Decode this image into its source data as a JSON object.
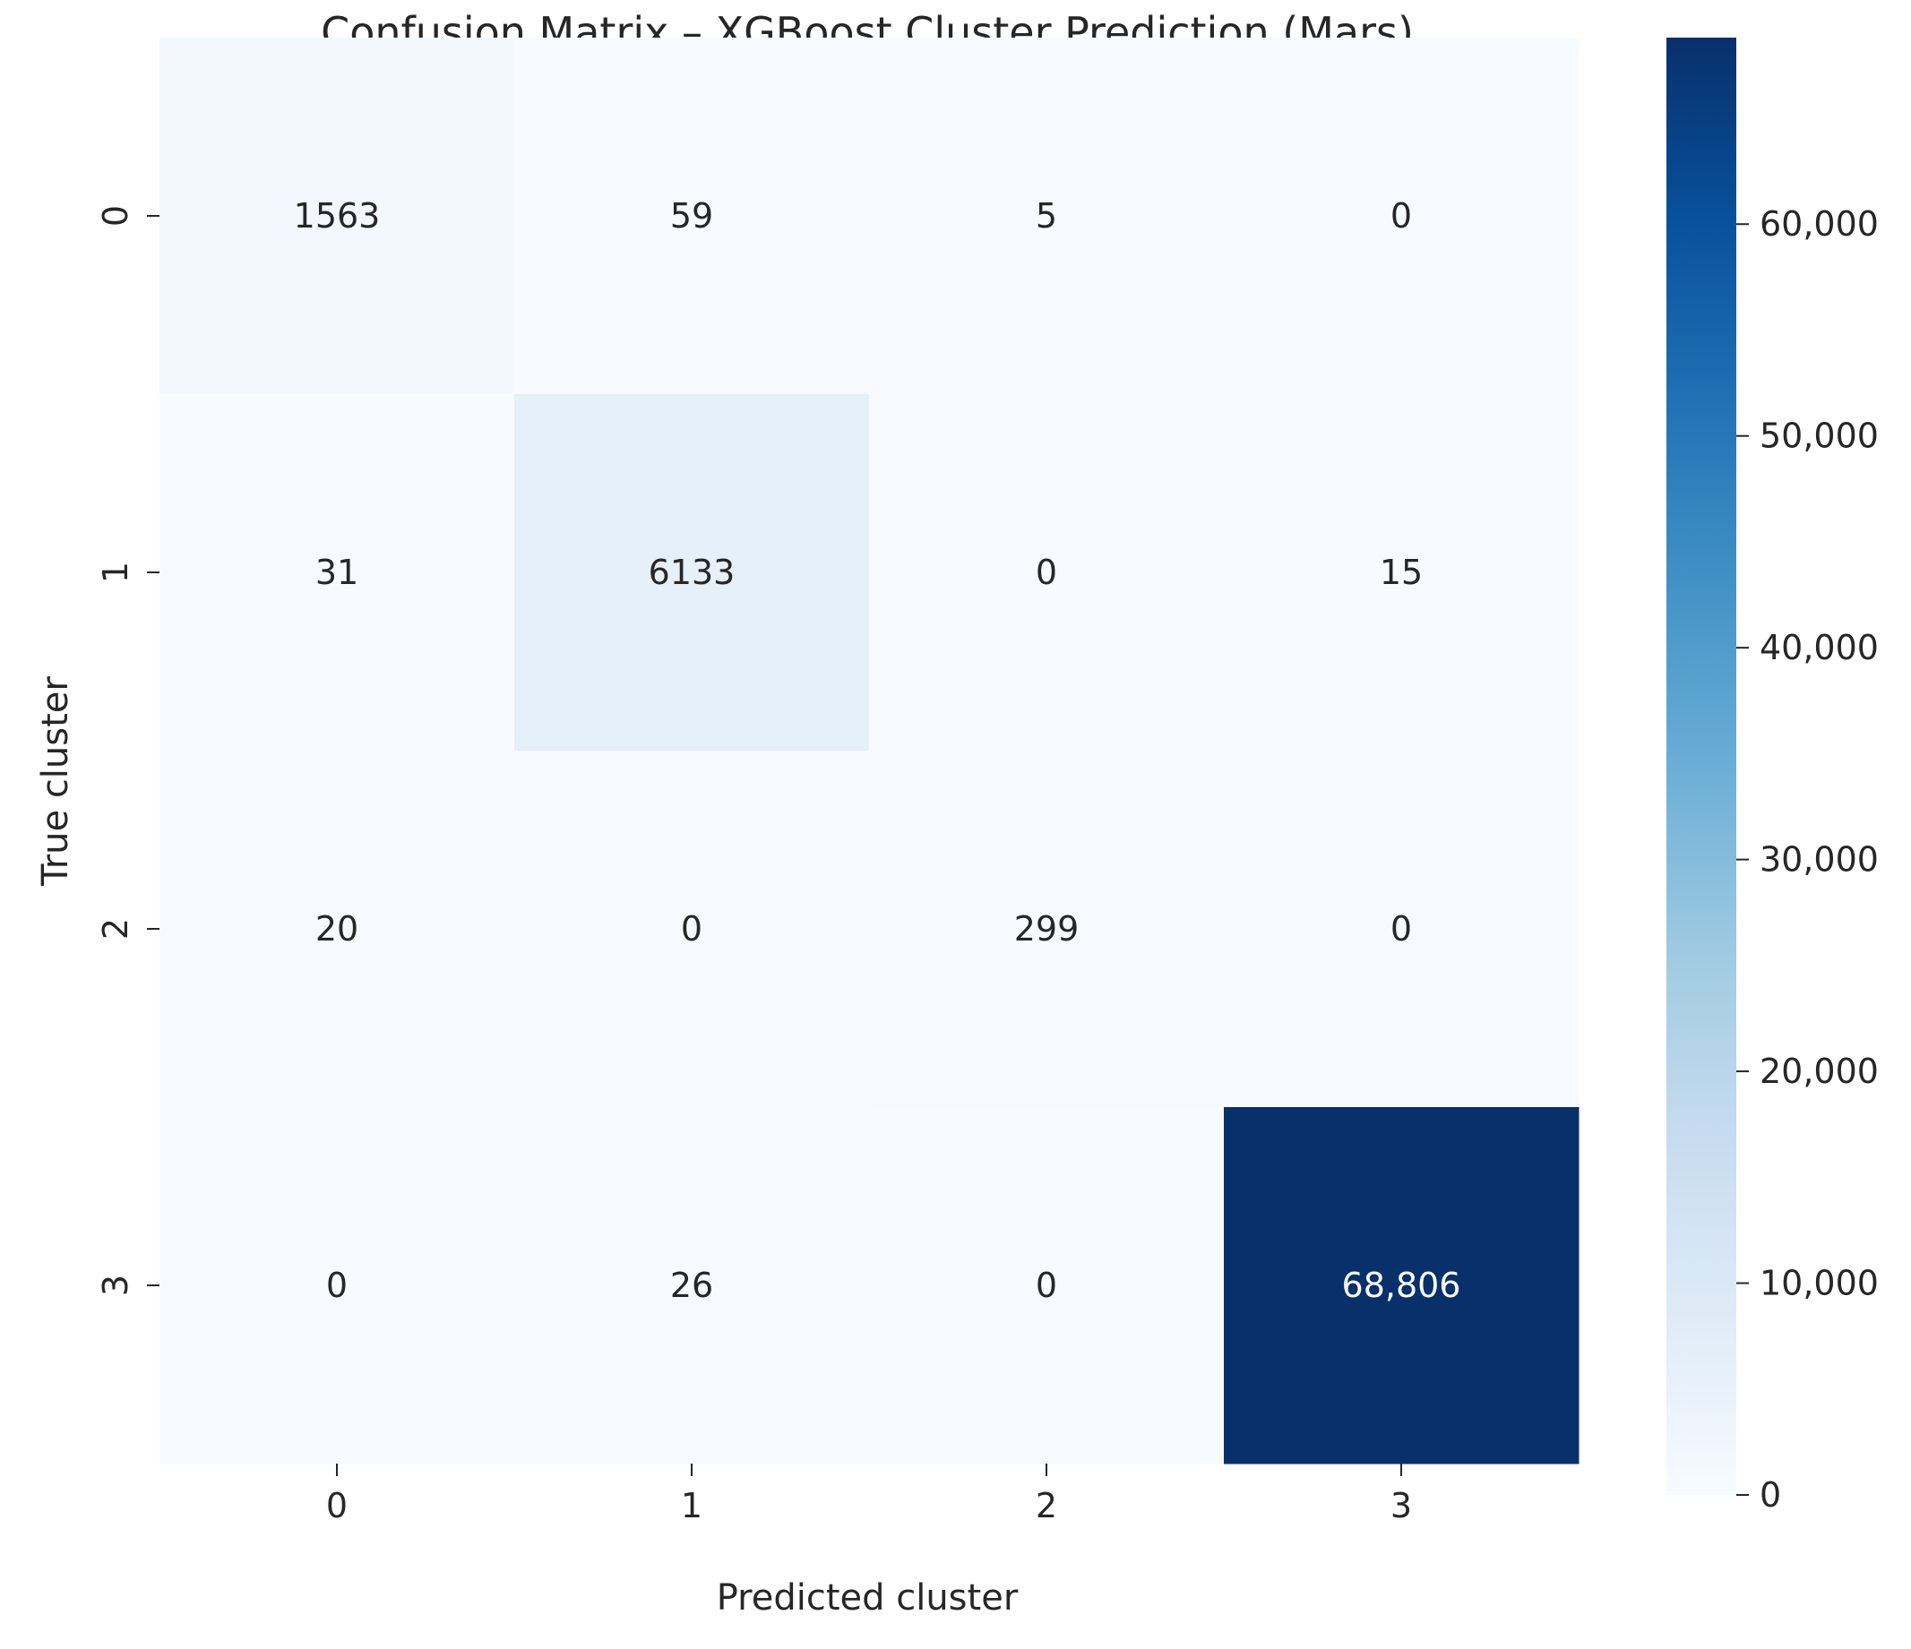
{
  "chart_data": {
    "type": "heatmap",
    "title": "Confusion Matrix – XGBoost Cluster Prediction (Mars)",
    "xlabel": "Predicted cluster",
    "ylabel": "True cluster",
    "x_categories": [
      "0",
      "1",
      "2",
      "3"
    ],
    "y_categories": [
      "0",
      "1",
      "2",
      "3"
    ],
    "values": [
      [
        1563,
        59,
        5,
        0
      ],
      [
        31,
        6133,
        0,
        15
      ],
      [
        20,
        0,
        299,
        0
      ],
      [
        0,
        26,
        0,
        68806
      ]
    ],
    "cell_labels": [
      [
        "1563",
        "59",
        "5",
        "0"
      ],
      [
        "31",
        "6133",
        "0",
        "15"
      ],
      [
        "20",
        "0",
        "299",
        "0"
      ],
      [
        "0",
        "26",
        "0",
        "68,806"
      ]
    ],
    "colormap": "Blues",
    "colorbar": {
      "range": [
        0,
        68806
      ],
      "ticks": [
        0,
        10000,
        20000,
        30000,
        40000,
        50000,
        60000
      ],
      "tick_labels": [
        "0",
        "10,000",
        "20,000",
        "30,000",
        "40,000",
        "50,000",
        "60,000"
      ]
    },
    "grid": false,
    "legend": "colorbar-right"
  }
}
